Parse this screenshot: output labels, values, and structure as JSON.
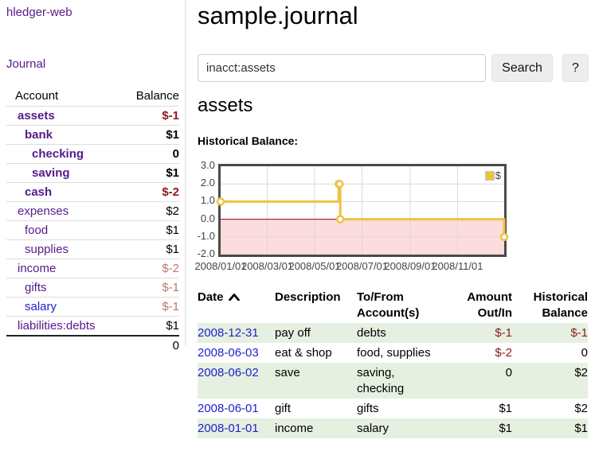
{
  "sidebar": {
    "brand": "hledger-web",
    "nav_journal": "Journal",
    "col_account": "Account",
    "col_balance": "Balance",
    "rows": [
      {
        "label": "assets",
        "value": "$-1",
        "level": 1,
        "current": true,
        "value_style": "negative"
      },
      {
        "label": "bank",
        "value": "$1",
        "level": 2,
        "current": true,
        "value_style": "normal"
      },
      {
        "label": "checking",
        "value": "0",
        "level": 3,
        "current": true,
        "value_style": "normal"
      },
      {
        "label": "saving",
        "value": "$1",
        "level": 3,
        "current": true,
        "value_style": "normal"
      },
      {
        "label": "cash",
        "value": "$-2",
        "level": 2,
        "current": true,
        "value_style": "negative"
      },
      {
        "label": "expenses",
        "value": "$2",
        "level": 1,
        "current": false,
        "value_style": "normal"
      },
      {
        "label": "food",
        "value": "$1",
        "level": 2,
        "current": false,
        "value_style": "normal"
      },
      {
        "label": "supplies",
        "value": "$1",
        "level": 2,
        "current": false,
        "value_style": "normal"
      },
      {
        "label": "income",
        "value": "$-2",
        "level": 1,
        "current": false,
        "value_style": "negative-faded"
      },
      {
        "label": "gifts",
        "value": "$-1",
        "level": 2,
        "current": false,
        "value_style": "negative-faded"
      },
      {
        "label": "salary",
        "value": "$-1",
        "level": 2,
        "current": false,
        "value_style": "negative-faded"
      },
      {
        "label": "liabilities:debts",
        "value": "$1",
        "level": 1,
        "current": false,
        "value_style": "normal"
      }
    ],
    "total": "0"
  },
  "header": {
    "title": "sample.journal"
  },
  "search": {
    "value": "inacct:assets",
    "clear_icon": "×",
    "button_label": "Search",
    "help_label": "?"
  },
  "account_page": {
    "heading": "assets",
    "chart_label": "Historical Balance:"
  },
  "chart_data": {
    "type": "line",
    "title": "Historical Balance",
    "style": "step-line-with-points",
    "series": [
      {
        "name": "$",
        "color": "#edc240",
        "points": [
          [
            "2008-01-01",
            1
          ],
          [
            "2008-06-01",
            2
          ],
          [
            "2008-06-02",
            2
          ],
          [
            "2008-06-03",
            0
          ],
          [
            "2008-12-31",
            -1
          ]
        ]
      }
    ],
    "xlim": [
      "2008-01-01",
      "2008-12-31"
    ],
    "ylim": [
      -2,
      3
    ],
    "y_ticks": [
      "3.0",
      "2.0",
      "1.0",
      "0.0",
      "-1.0",
      "-2.0"
    ],
    "x_ticks": [
      {
        "label": "2008/01/01",
        "date": "2008-01-01"
      },
      {
        "label": "2008/03/01",
        "date": "2008-03-01"
      },
      {
        "label": "2008/05/01",
        "date": "2008-05-01"
      },
      {
        "label": "2008/07/01",
        "date": "2008-07-01"
      },
      {
        "label": "2008/09/01",
        "date": "2008-09-01"
      },
      {
        "label": "2008/11/01",
        "date": "2008-11-01"
      }
    ],
    "legend": {
      "position": "top-right",
      "label": "$"
    },
    "grid": {
      "color": "#d9d9d9",
      "border_color": "#4a4a4a",
      "negative_region_fill": "#fcdcdc",
      "zero_line_color": "#aa0000"
    }
  },
  "register": {
    "columns": {
      "date": "Date",
      "description": "Description",
      "accounts": "To/From Account(s)",
      "amount": "Amount Out/In",
      "balance": "Historical Balance"
    },
    "sort": "date-ascending",
    "rows": [
      {
        "date": "2008-12-31",
        "description": "pay off",
        "accounts": "debts",
        "amount": "$-1",
        "balance": "$-1"
      },
      {
        "date": "2008-06-03",
        "description": "eat & shop",
        "accounts": "food, supplies",
        "amount": "$-2",
        "balance": "0"
      },
      {
        "date": "2008-06-02",
        "description": "save",
        "accounts": "saving, checking",
        "amount": "0",
        "balance": "$2"
      },
      {
        "date": "2008-06-01",
        "description": "gift",
        "accounts": "gifts",
        "amount": "$1",
        "balance": "$2"
      },
      {
        "date": "2008-01-01",
        "description": "income",
        "accounts": "salary",
        "amount": "$1",
        "balance": "$1"
      }
    ]
  },
  "colors": {
    "link_purple": "#551a8b",
    "link_blue": "#2222cc",
    "negative": "#8b1a1a",
    "negative_faded": "#bd7474",
    "row_stripe_green": "#e5f0e0",
    "series_gold": "#edc240"
  }
}
